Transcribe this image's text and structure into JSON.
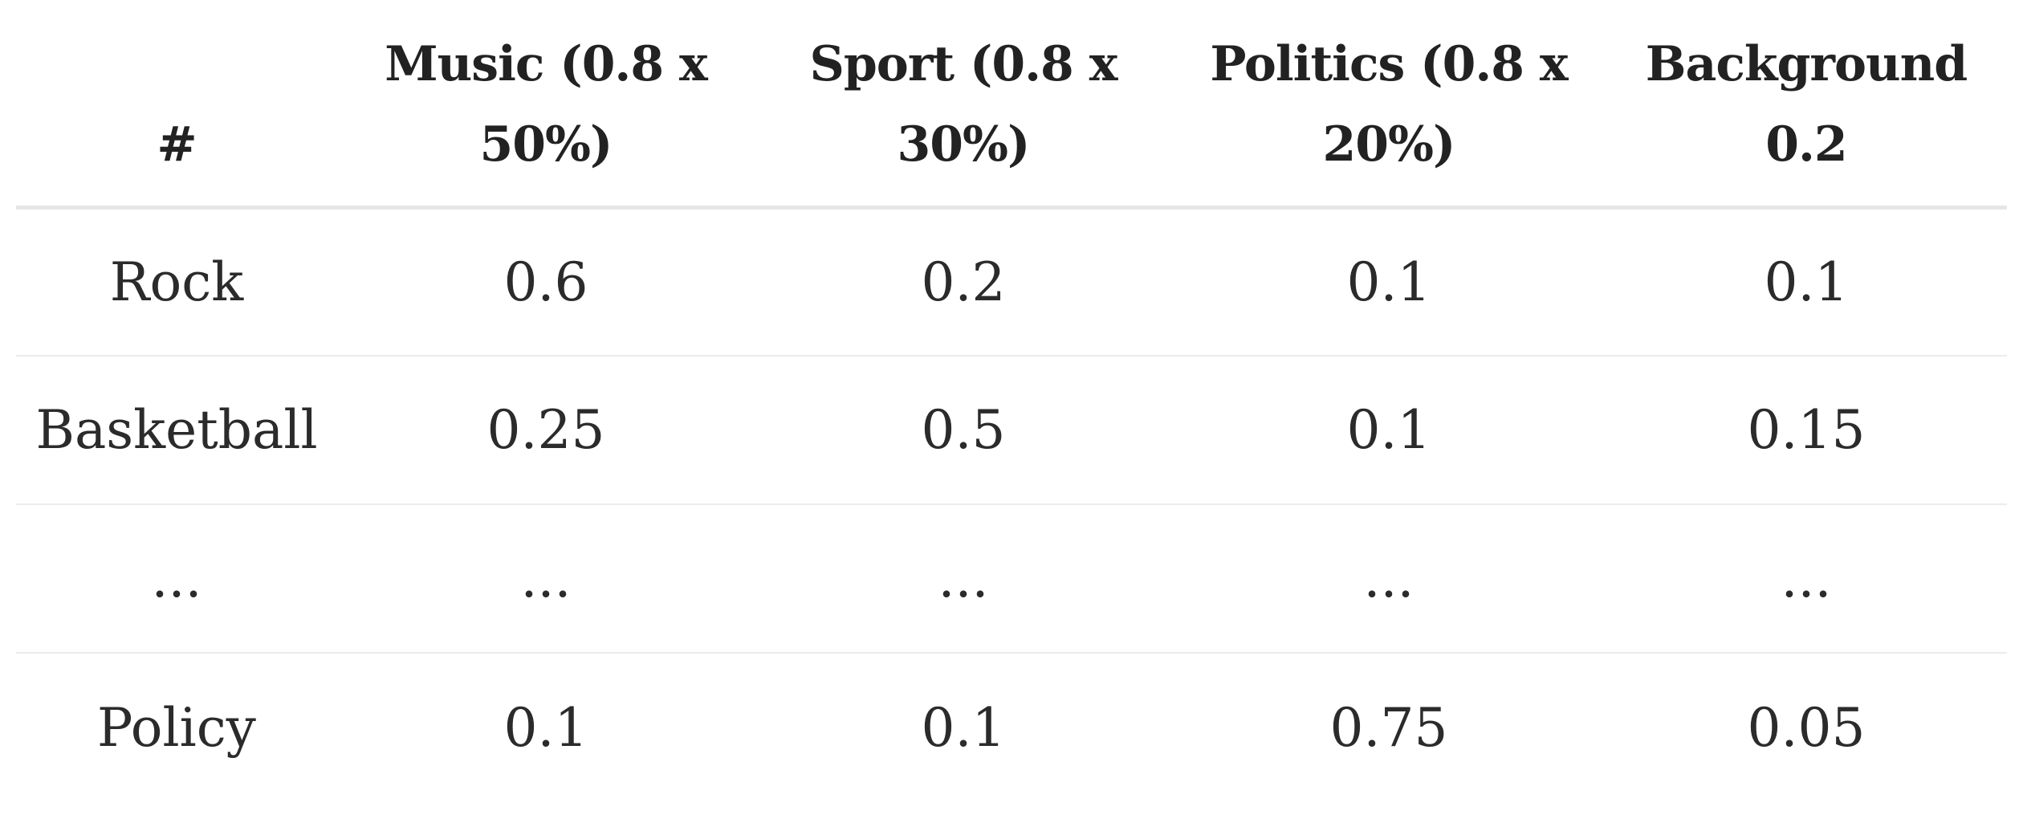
{
  "table": {
    "headers": [
      "#",
      "Music (0.8 x 50%)",
      "Sport (0.8 x 30%)",
      "Politics (0.8 x 20%)",
      "Background 0.2"
    ],
    "rows": [
      [
        "Rock",
        "0.6",
        "0.2",
        "0.1",
        "0.1"
      ],
      [
        "Basketball",
        "0.25",
        "0.5",
        "0.1",
        "0.15"
      ],
      [
        "...",
        "...",
        "...",
        "...",
        "..."
      ],
      [
        "Policy",
        "0.1",
        "0.1",
        "0.75",
        "0.05"
      ]
    ]
  }
}
